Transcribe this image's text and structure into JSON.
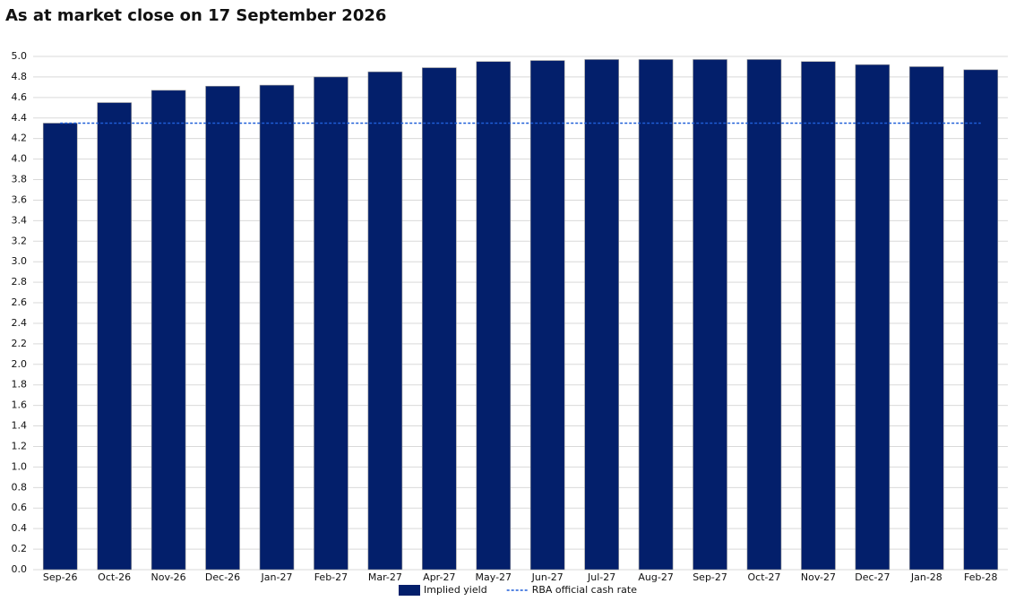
{
  "chart_data": {
    "type": "bar",
    "title": "As at market close on 17 September 2026",
    "categories": [
      "Sep-26",
      "Oct-26",
      "Nov-26",
      "Dec-26",
      "Jan-27",
      "Feb-27",
      "Mar-27",
      "Apr-27",
      "May-27",
      "Jun-27",
      "Jul-27",
      "Aug-27",
      "Sep-27",
      "Oct-27",
      "Nov-27",
      "Dec-27",
      "Jan-28",
      "Feb-28"
    ],
    "series": [
      {
        "name": "Implied yield",
        "type": "bar",
        "color": "#031f6b",
        "values": [
          4.35,
          4.55,
          4.67,
          4.71,
          4.72,
          4.8,
          4.85,
          4.89,
          4.95,
          4.96,
          4.97,
          4.97,
          4.97,
          4.97,
          4.95,
          4.92,
          4.9,
          4.87
        ]
      },
      {
        "name": "RBA official cash rate",
        "type": "line",
        "color": "#1f5fd8",
        "dashed": true,
        "values": [
          4.35,
          4.35,
          4.35,
          4.35,
          4.35,
          4.35,
          4.35,
          4.35,
          4.35,
          4.35,
          4.35,
          4.35,
          4.35,
          4.35,
          4.35,
          4.35,
          4.35,
          4.35
        ]
      }
    ],
    "ylim": [
      0,
      5
    ],
    "yticks": [
      {
        "value": 0,
        "label": "0.0"
      },
      0.2,
      0.4,
      0.6,
      0.8,
      {
        "value": 1,
        "label": "1.0"
      },
      1.2,
      1.4,
      1.6,
      1.8,
      {
        "value": 2,
        "label": "2.0"
      },
      2.2,
      2.4,
      2.6,
      2.8,
      {
        "value": 3,
        "label": "3.0"
      },
      3.2,
      3.4,
      3.6,
      3.8,
      {
        "value": 4,
        "label": "4.0"
      },
      4.2,
      4.4,
      4.6,
      4.8,
      {
        "value": 5,
        "label": "5.0"
      }
    ],
    "grid": true,
    "legend": "bottom"
  }
}
